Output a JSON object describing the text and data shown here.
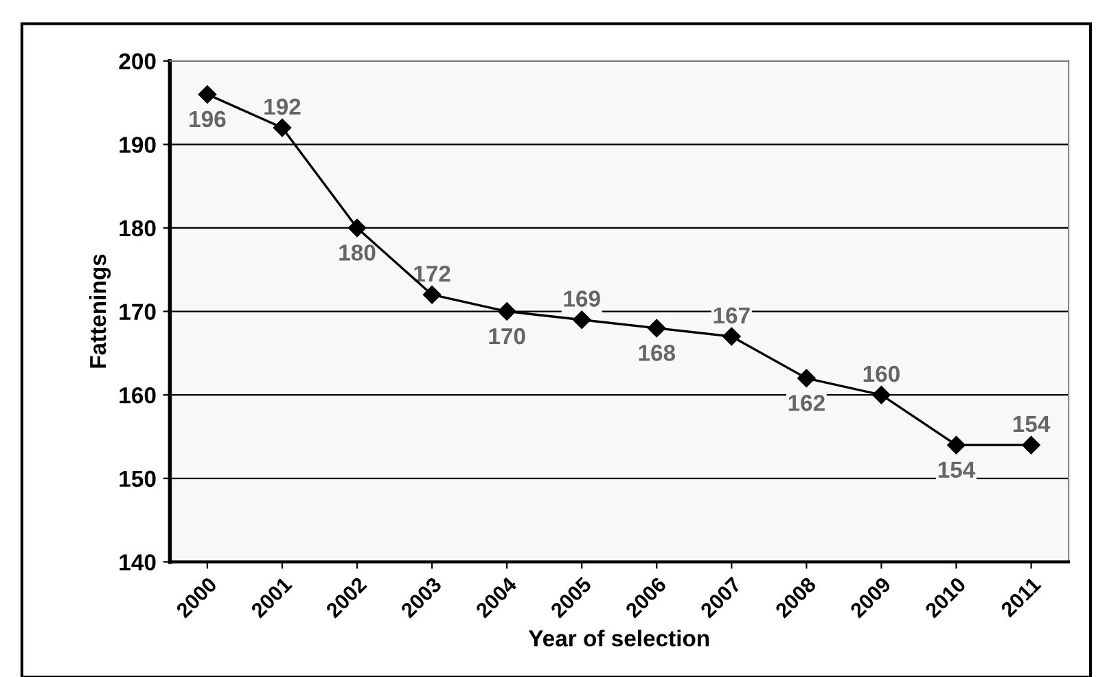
{
  "chart_data": {
    "type": "line",
    "xlabel": "Year of selection",
    "ylabel": "Fattenings",
    "categories": [
      "2000",
      "2001",
      "2002",
      "2003",
      "2004",
      "2005",
      "2006",
      "2007",
      "2008",
      "2009",
      "2010",
      "2011"
    ],
    "series": [
      {
        "color": "#000000",
        "values": [
          196,
          192,
          180,
          172,
          170,
          169,
          168,
          167,
          162,
          160,
          154,
          154
        ]
      }
    ],
    "ylim": [
      140,
      200
    ],
    "yticks": [
      140,
      150,
      160,
      170,
      180,
      190,
      200
    ],
    "grid": "y",
    "marker": "diamond",
    "line_style": "solid",
    "data_labels": true
  }
}
